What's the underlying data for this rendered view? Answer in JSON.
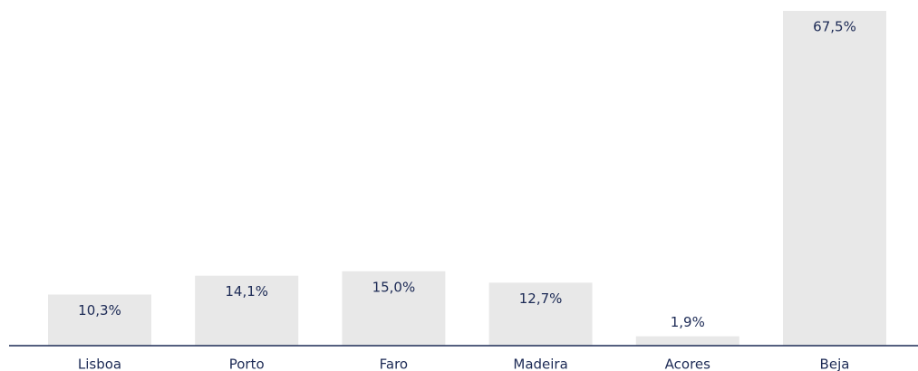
{
  "chart_data": {
    "type": "bar",
    "categories": [
      "Lisboa",
      "Porto",
      "Faro",
      "Madeira",
      "Acores",
      "Beja"
    ],
    "values": [
      10.3,
      14.1,
      15.0,
      12.7,
      1.9,
      67.5
    ],
    "value_labels": [
      "10,3%",
      "14,1%",
      "15,0%",
      "12,7%",
      "1,9%",
      "67,5%"
    ],
    "color": "#e8e8e8"
  }
}
